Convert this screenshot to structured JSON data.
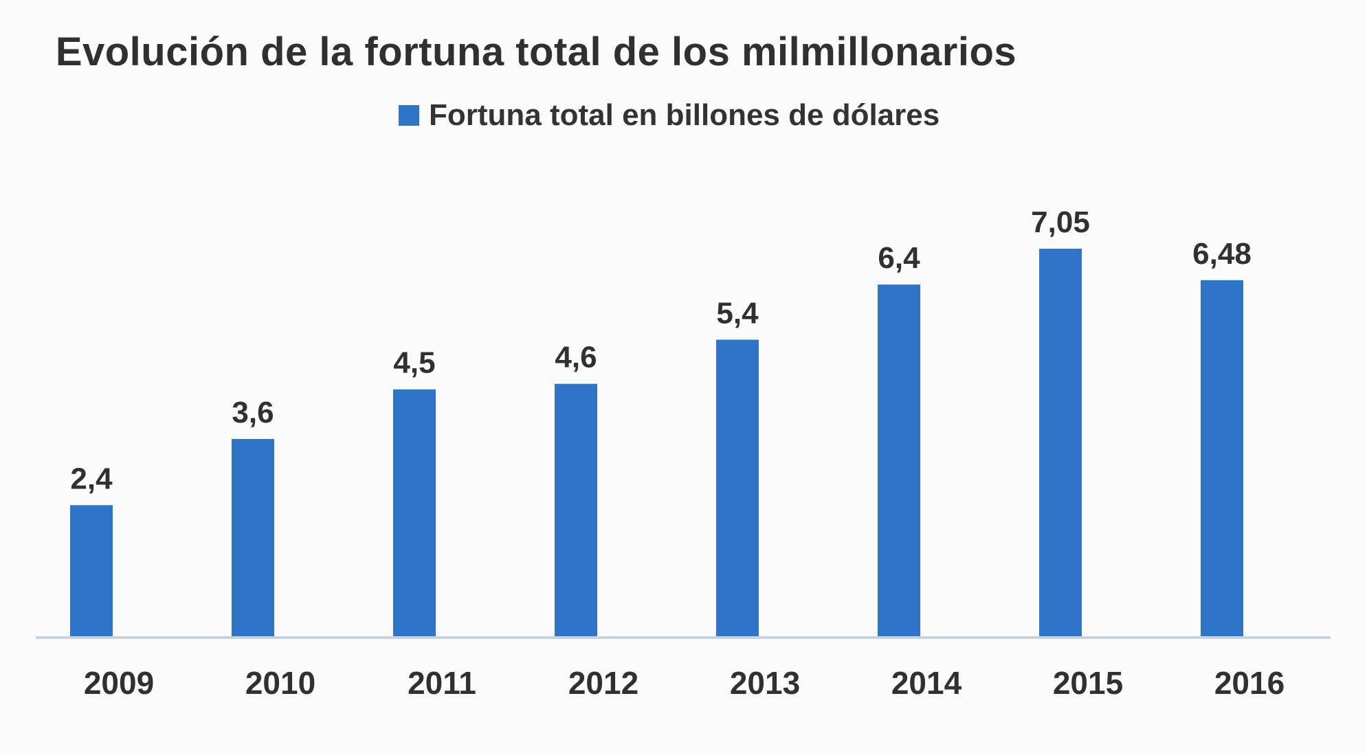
{
  "chart_data": {
    "type": "bar",
    "title": "Evolución de la fortuna total de los milmillonarios",
    "legend": {
      "entries": [
        "Fortuna total en billones de dólares"
      ],
      "placement": "top-center"
    },
    "categories": [
      "2009",
      "2010",
      "2011",
      "2012",
      "2013",
      "2014",
      "2015",
      "2016"
    ],
    "series": [
      {
        "name": "Fortuna total en billones de dólares",
        "values": [
          2.4,
          3.6,
          4.5,
          4.6,
          5.4,
          6.4,
          7.05,
          6.48
        ],
        "data_labels": [
          "2,4",
          "3,6",
          "4,5",
          "4,6",
          "5,4",
          "6,4",
          "7,05",
          "6,48"
        ],
        "color": "#2e75c9"
      }
    ],
    "xlabel": "",
    "ylabel": "",
    "ylim": [
      0,
      7.05
    ],
    "grid": false,
    "y_axis_visible": false,
    "colors": {
      "bar": "#2e75c9",
      "axis_line": "#c9d3e0",
      "text": "#303030"
    }
  }
}
